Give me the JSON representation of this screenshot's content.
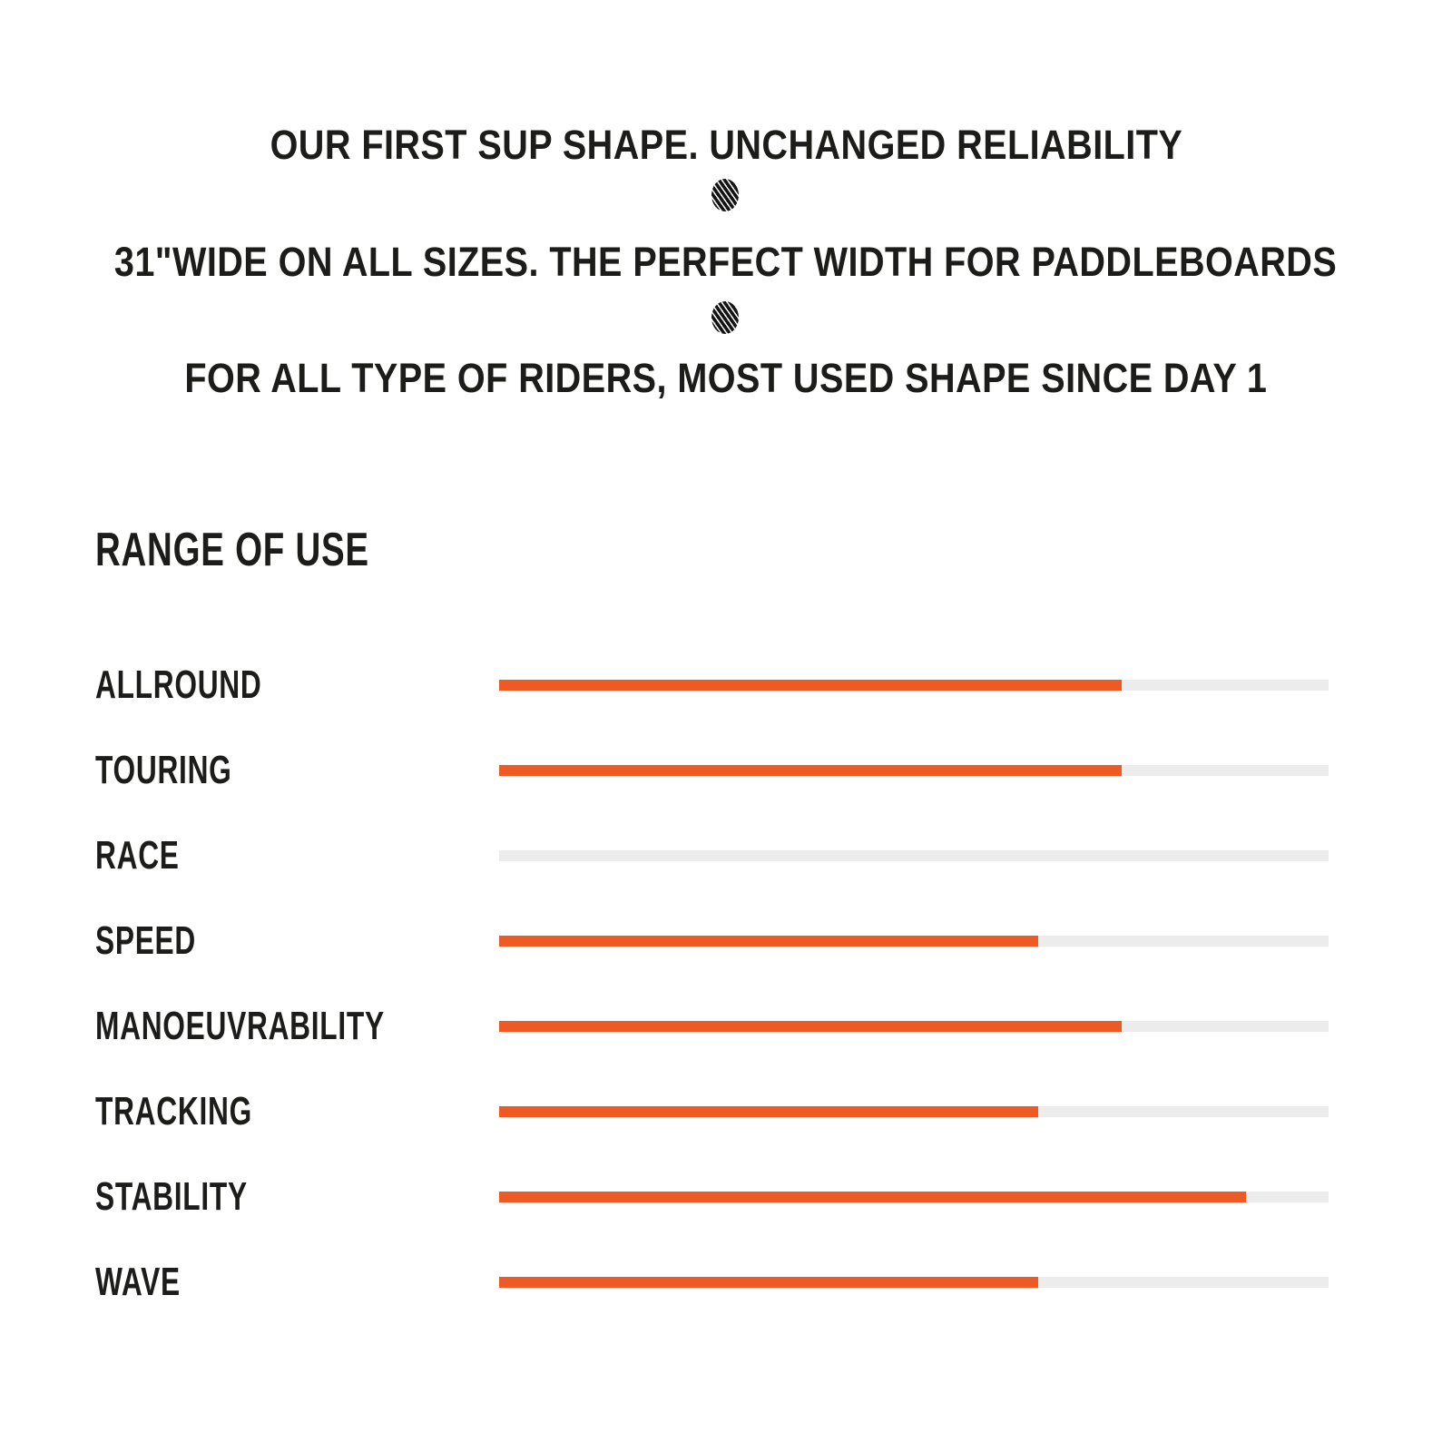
{
  "header": {
    "line1": "OUR FIRST SUP SHAPE. UNCHANGED RELIABILITY",
    "line2": "31\"WIDE ON ALL SIZES. THE PERFECT WIDTH FOR PADDLEBOARDS",
    "line3": "FOR ALL TYPE OF RIDERS, MOST USED SHAPE SINCE DAY 1",
    "separator_icon": "scribble-dot-icon"
  },
  "chart_data": {
    "type": "bar",
    "orientation": "horizontal",
    "title": "RANGE OF USE",
    "categories": [
      "ALLROUND",
      "TOURING",
      "RACE",
      "SPEED",
      "MANOEUVRABILITY",
      "TRACKING",
      "STABILITY",
      "WAVE"
    ],
    "values": [
      75,
      75,
      0,
      65,
      75,
      65,
      90,
      65
    ],
    "value_unit": "percent of track length",
    "xlim": [
      0,
      100
    ],
    "grid": false,
    "legend": false,
    "bar_color": "#EE5A24",
    "track_color": "#ECECEC"
  },
  "colors": {
    "accent": "#EE5A24",
    "track": "#ECECEC",
    "text": "#1C1C1A",
    "background": "#FFFFFF"
  }
}
